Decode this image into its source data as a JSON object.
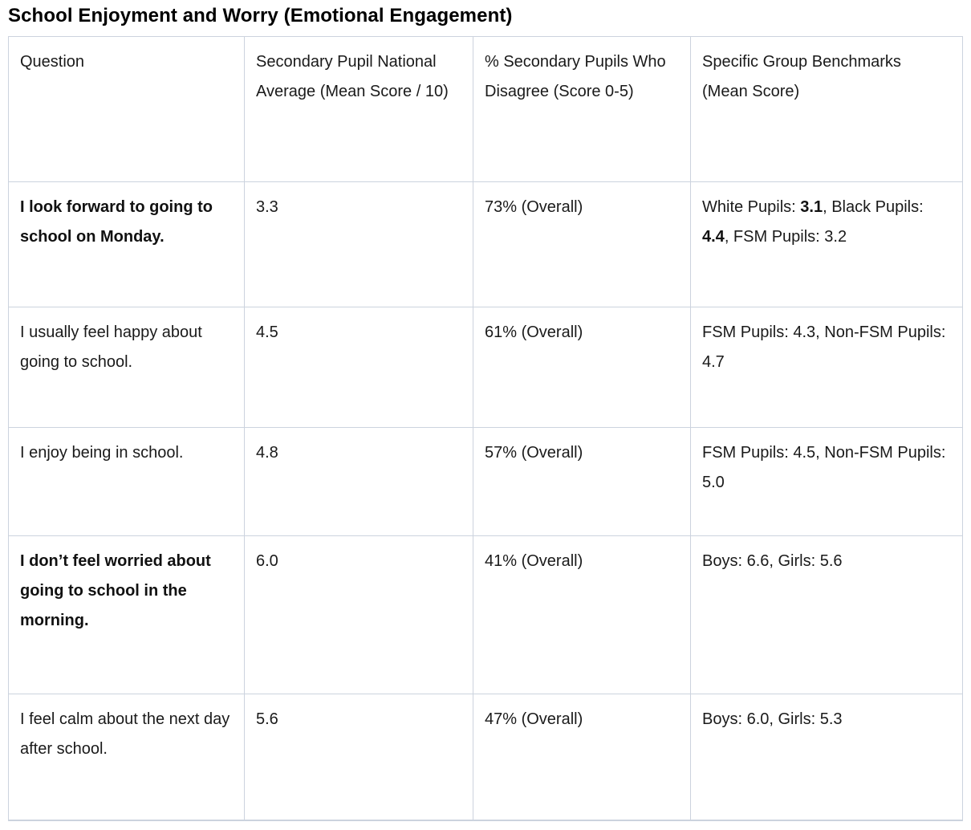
{
  "page": {
    "title": "School Enjoyment and Worry (Emotional Engagement)"
  },
  "colors": {
    "background": "#ffffff",
    "text": "#1a1a1a",
    "table_border": "#ccd3de"
  },
  "table": {
    "headers": [
      "Question",
      "Secondary Pupil National Average (Mean Score / 10)",
      "% Secondary Pupils Who Disagree (Score 0-5)",
      "Specific Group Benchmarks (Mean Score)"
    ],
    "rows": [
      {
        "cells": [
          [
            {
              "t": "I look forward to going to school on Monday.",
              "b": true
            }
          ],
          [
            {
              "t": "3.3"
            }
          ],
          [
            {
              "t": "73% (Overall)"
            }
          ],
          [
            {
              "t": "White Pupils: "
            },
            {
              "t": "3.1",
              "b": true
            },
            {
              "t": ", Black Pupils: "
            },
            {
              "t": "4.4",
              "b": true
            },
            {
              "t": ", FSM Pupils: 3.2"
            }
          ]
        ]
      },
      {
        "cells": [
          [
            {
              "t": "I usually feel happy about going to school."
            }
          ],
          [
            {
              "t": "4.5"
            }
          ],
          [
            {
              "t": "61% (Overall)"
            }
          ],
          [
            {
              "t": "FSM Pupils: 4.3, Non-FSM Pupils: 4.7"
            }
          ]
        ]
      },
      {
        "cells": [
          [
            {
              "t": "I enjoy being in school."
            }
          ],
          [
            {
              "t": "4.8"
            }
          ],
          [
            {
              "t": "57% (Overall)"
            }
          ],
          [
            {
              "t": "FSM Pupils: 4.5, Non-FSM Pupils: 5.0"
            }
          ]
        ]
      },
      {
        "cells": [
          [
            {
              "t": "I don’t feel worried about going to school in the morning.",
              "b": true
            }
          ],
          [
            {
              "t": "6.0"
            }
          ],
          [
            {
              "t": "41% (Overall)"
            }
          ],
          [
            {
              "t": "Boys: 6.6, Girls: 5.6"
            }
          ]
        ]
      },
      {
        "cells": [
          [
            {
              "t": "I feel calm about the next day after school."
            }
          ],
          [
            {
              "t": "5.6"
            }
          ],
          [
            {
              "t": "47% (Overall)"
            }
          ],
          [
            {
              "t": "Boys: 6.0, Girls: 5.3"
            }
          ]
        ]
      }
    ]
  }
}
